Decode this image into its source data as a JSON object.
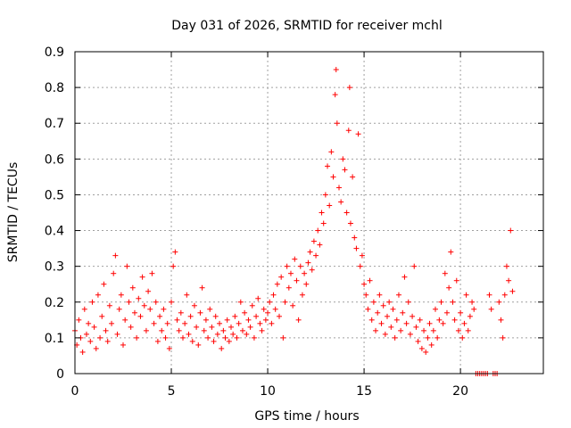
{
  "chart_data": {
    "type": "scatter",
    "title": "Day 031 of 2026, SRMTID for receiver mchl",
    "xlabel": "GPS time / hours",
    "ylabel": "SRMTID / TECUs",
    "xlim": [
      0,
      24.3
    ],
    "ylim": [
      0,
      0.9
    ],
    "xticks": [
      0,
      5,
      10,
      15,
      20
    ],
    "xtick_labels": [
      "0",
      "5",
      "10",
      "15",
      "20"
    ],
    "yticks": [
      0,
      0.1,
      0.2,
      0.3,
      0.4,
      0.5,
      0.6,
      0.7,
      0.8,
      0.9
    ],
    "ytick_labels": [
      "0",
      "0.1",
      "0.2",
      "0.3",
      "0.4",
      "0.5",
      "0.6",
      "0.7",
      "0.8",
      "0.9"
    ],
    "grid": true,
    "marker": "+",
    "color": "#ff0000",
    "series": [
      {
        "name": "SRMTID",
        "points": [
          [
            0.0,
            0.12
          ],
          [
            0.1,
            0.08
          ],
          [
            0.2,
            0.15
          ],
          [
            0.3,
            0.1
          ],
          [
            0.4,
            0.06
          ],
          [
            0.5,
            0.18
          ],
          [
            0.6,
            0.11
          ],
          [
            0.7,
            0.14
          ],
          [
            0.8,
            0.09
          ],
          [
            0.9,
            0.2
          ],
          [
            1.0,
            0.13
          ],
          [
            1.1,
            0.07
          ],
          [
            1.2,
            0.22
          ],
          [
            1.3,
            0.1
          ],
          [
            1.4,
            0.16
          ],
          [
            1.5,
            0.25
          ],
          [
            1.6,
            0.12
          ],
          [
            1.7,
            0.09
          ],
          [
            1.8,
            0.19
          ],
          [
            1.9,
            0.14
          ],
          [
            2.0,
            0.28
          ],
          [
            2.1,
            0.33
          ],
          [
            2.2,
            0.11
          ],
          [
            2.3,
            0.18
          ],
          [
            2.4,
            0.22
          ],
          [
            2.5,
            0.08
          ],
          [
            2.6,
            0.15
          ],
          [
            2.7,
            0.3
          ],
          [
            2.8,
            0.2
          ],
          [
            2.9,
            0.13
          ],
          [
            3.0,
            0.24
          ],
          [
            3.1,
            0.17
          ],
          [
            3.2,
            0.1
          ],
          [
            3.3,
            0.21
          ],
          [
            3.4,
            0.16
          ],
          [
            3.5,
            0.27
          ],
          [
            3.6,
            0.19
          ],
          [
            3.7,
            0.12
          ],
          [
            3.8,
            0.23
          ],
          [
            3.9,
            0.18
          ],
          [
            4.0,
            0.28
          ],
          [
            4.1,
            0.14
          ],
          [
            4.2,
            0.2
          ],
          [
            4.3,
            0.09
          ],
          [
            4.4,
            0.16
          ],
          [
            4.5,
            0.12
          ],
          [
            4.6,
            0.18
          ],
          [
            4.7,
            0.1
          ],
          [
            4.8,
            0.14
          ],
          [
            4.9,
            0.07
          ],
          [
            5.0,
            0.2
          ],
          [
            5.1,
            0.3
          ],
          [
            5.2,
            0.34
          ],
          [
            5.3,
            0.15
          ],
          [
            5.4,
            0.12
          ],
          [
            5.5,
            0.17
          ],
          [
            5.6,
            0.1
          ],
          [
            5.7,
            0.14
          ],
          [
            5.8,
            0.22
          ],
          [
            5.9,
            0.11
          ],
          [
            6.0,
            0.16
          ],
          [
            6.1,
            0.09
          ],
          [
            6.2,
            0.19
          ],
          [
            6.3,
            0.13
          ],
          [
            6.4,
            0.08
          ],
          [
            6.5,
            0.17
          ],
          [
            6.6,
            0.24
          ],
          [
            6.7,
            0.12
          ],
          [
            6.8,
            0.15
          ],
          [
            6.9,
            0.1
          ],
          [
            7.0,
            0.18
          ],
          [
            7.1,
            0.13
          ],
          [
            7.2,
            0.09
          ],
          [
            7.3,
            0.16
          ],
          [
            7.4,
            0.11
          ],
          [
            7.5,
            0.14
          ],
          [
            7.6,
            0.07
          ],
          [
            7.7,
            0.12
          ],
          [
            7.8,
            0.1
          ],
          [
            7.9,
            0.15
          ],
          [
            8.0,
            0.09
          ],
          [
            8.1,
            0.13
          ],
          [
            8.2,
            0.11
          ],
          [
            8.3,
            0.16
          ],
          [
            8.4,
            0.1
          ],
          [
            8.5,
            0.14
          ],
          [
            8.6,
            0.2
          ],
          [
            8.7,
            0.12
          ],
          [
            8.8,
            0.17
          ],
          [
            8.9,
            0.11
          ],
          [
            9.0,
            0.15
          ],
          [
            9.1,
            0.13
          ],
          [
            9.2,
            0.19
          ],
          [
            9.3,
            0.1
          ],
          [
            9.4,
            0.16
          ],
          [
            9.5,
            0.21
          ],
          [
            9.6,
            0.14
          ],
          [
            9.7,
            0.12
          ],
          [
            9.8,
            0.18
          ],
          [
            9.9,
            0.15
          ],
          [
            10.0,
            0.17
          ],
          [
            10.1,
            0.2
          ],
          [
            10.2,
            0.14
          ],
          [
            10.3,
            0.22
          ],
          [
            10.4,
            0.18
          ],
          [
            10.5,
            0.25
          ],
          [
            10.6,
            0.16
          ],
          [
            10.7,
            0.27
          ],
          [
            10.8,
            0.1
          ],
          [
            10.9,
            0.2
          ],
          [
            11.0,
            0.3
          ],
          [
            11.1,
            0.24
          ],
          [
            11.2,
            0.28
          ],
          [
            11.3,
            0.19
          ],
          [
            11.4,
            0.32
          ],
          [
            11.5,
            0.26
          ],
          [
            11.6,
            0.15
          ],
          [
            11.7,
            0.3
          ],
          [
            11.8,
            0.22
          ],
          [
            11.9,
            0.28
          ],
          [
            12.0,
            0.25
          ],
          [
            12.1,
            0.31
          ],
          [
            12.2,
            0.34
          ],
          [
            12.3,
            0.29
          ],
          [
            12.4,
            0.37
          ],
          [
            12.5,
            0.33
          ],
          [
            12.6,
            0.4
          ],
          [
            12.7,
            0.36
          ],
          [
            12.8,
            0.45
          ],
          [
            12.9,
            0.42
          ],
          [
            13.0,
            0.5
          ],
          [
            13.1,
            0.58
          ],
          [
            13.2,
            0.47
          ],
          [
            13.3,
            0.62
          ],
          [
            13.4,
            0.55
          ],
          [
            13.5,
            0.78
          ],
          [
            13.55,
            0.85
          ],
          [
            13.6,
            0.7
          ],
          [
            13.7,
            0.52
          ],
          [
            13.8,
            0.48
          ],
          [
            13.9,
            0.6
          ],
          [
            14.0,
            0.57
          ],
          [
            14.1,
            0.45
          ],
          [
            14.2,
            0.68
          ],
          [
            14.25,
            0.8
          ],
          [
            14.3,
            0.42
          ],
          [
            14.4,
            0.55
          ],
          [
            14.5,
            0.38
          ],
          [
            14.6,
            0.35
          ],
          [
            14.7,
            0.67
          ],
          [
            14.8,
            0.3
          ],
          [
            14.9,
            0.33
          ],
          [
            15.0,
            0.25
          ],
          [
            15.1,
            0.22
          ],
          [
            15.2,
            0.18
          ],
          [
            15.3,
            0.26
          ],
          [
            15.4,
            0.15
          ],
          [
            15.5,
            0.2
          ],
          [
            15.6,
            0.12
          ],
          [
            15.7,
            0.17
          ],
          [
            15.8,
            0.22
          ],
          [
            15.9,
            0.14
          ],
          [
            16.0,
            0.19
          ],
          [
            16.1,
            0.11
          ],
          [
            16.2,
            0.16
          ],
          [
            16.3,
            0.2
          ],
          [
            16.4,
            0.13
          ],
          [
            16.5,
            0.18
          ],
          [
            16.6,
            0.1
          ],
          [
            16.7,
            0.15
          ],
          [
            16.8,
            0.22
          ],
          [
            16.9,
            0.12
          ],
          [
            17.0,
            0.17
          ],
          [
            17.1,
            0.27
          ],
          [
            17.2,
            0.14
          ],
          [
            17.3,
            0.2
          ],
          [
            17.4,
            0.11
          ],
          [
            17.5,
            0.16
          ],
          [
            17.6,
            0.3
          ],
          [
            17.7,
            0.13
          ],
          [
            17.8,
            0.09
          ],
          [
            17.9,
            0.15
          ],
          [
            18.0,
            0.07
          ],
          [
            18.1,
            0.12
          ],
          [
            18.2,
            0.06
          ],
          [
            18.3,
            0.1
          ],
          [
            18.4,
            0.14
          ],
          [
            18.5,
            0.08
          ],
          [
            18.6,
            0.12
          ],
          [
            18.7,
            0.18
          ],
          [
            18.8,
            0.1
          ],
          [
            18.9,
            0.15
          ],
          [
            19.0,
            0.2
          ],
          [
            19.1,
            0.14
          ],
          [
            19.2,
            0.28
          ],
          [
            19.3,
            0.17
          ],
          [
            19.4,
            0.24
          ],
          [
            19.5,
            0.34
          ],
          [
            19.6,
            0.2
          ],
          [
            19.7,
            0.15
          ],
          [
            19.8,
            0.26
          ],
          [
            19.9,
            0.12
          ],
          [
            20.0,
            0.17
          ],
          [
            20.1,
            0.1
          ],
          [
            20.2,
            0.14
          ],
          [
            20.3,
            0.22
          ],
          [
            20.4,
            0.12
          ],
          [
            20.5,
            0.16
          ],
          [
            20.6,
            0.2
          ],
          [
            20.7,
            0.18
          ],
          [
            20.8,
            0.0
          ],
          [
            20.9,
            0.0
          ],
          [
            21.0,
            0.0
          ],
          [
            21.1,
            0.0
          ],
          [
            21.2,
            0.0
          ],
          [
            21.3,
            0.0
          ],
          [
            21.4,
            0.0
          ],
          [
            21.5,
            0.22
          ],
          [
            21.6,
            0.18
          ],
          [
            21.7,
            0.0
          ],
          [
            21.8,
            0.0
          ],
          [
            21.9,
            0.0
          ],
          [
            22.0,
            0.2
          ],
          [
            22.1,
            0.15
          ],
          [
            22.2,
            0.1
          ],
          [
            22.3,
            0.22
          ],
          [
            22.4,
            0.3
          ],
          [
            22.5,
            0.26
          ],
          [
            22.6,
            0.4
          ],
          [
            22.7,
            0.23
          ]
        ]
      }
    ]
  }
}
